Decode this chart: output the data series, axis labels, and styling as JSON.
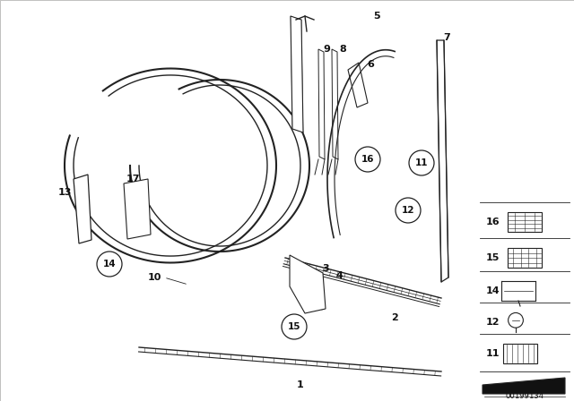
{
  "background_color": "#f2f0ec",
  "fig_width": 6.4,
  "fig_height": 4.48,
  "dpi": 100,
  "text_color": "#111111",
  "line_color": "#222222"
}
